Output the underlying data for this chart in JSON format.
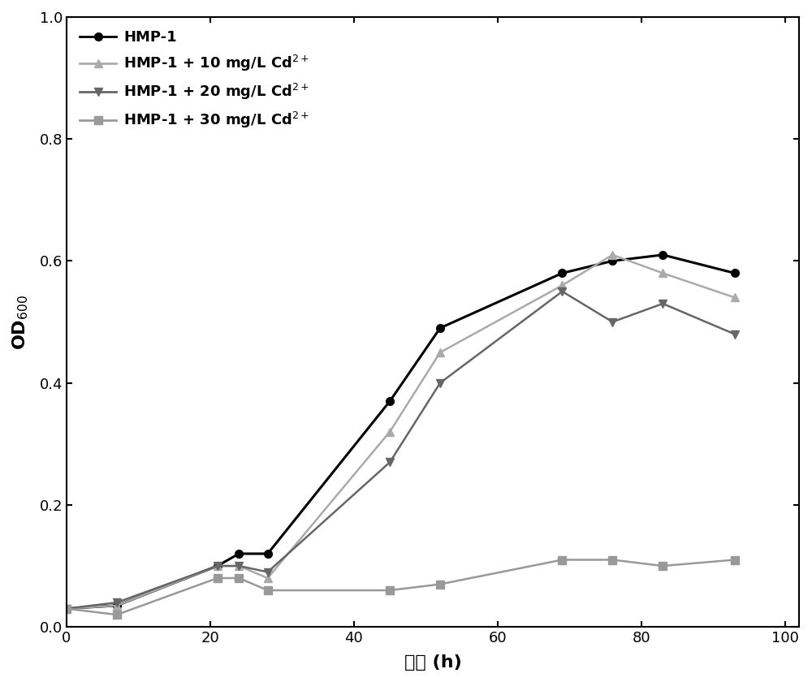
{
  "series": [
    {
      "label": "HMP-1",
      "color": "#000000",
      "linewidth": 2.2,
      "marker": "o",
      "markersize": 7,
      "x": [
        0,
        7,
        21,
        24,
        28,
        45,
        52,
        69,
        76,
        83,
        93
      ],
      "y": [
        0.03,
        0.035,
        0.1,
        0.12,
        0.12,
        0.37,
        0.49,
        0.58,
        0.6,
        0.61,
        0.58
      ]
    },
    {
      "label": "HMP-1 + 10 mg/L Cd$^{2+}$",
      "color": "#aaaaaa",
      "linewidth": 1.8,
      "marker": "^",
      "markersize": 7,
      "x": [
        0,
        7,
        21,
        24,
        28,
        45,
        52,
        69,
        76,
        83,
        93
      ],
      "y": [
        0.03,
        0.035,
        0.1,
        0.1,
        0.08,
        0.32,
        0.45,
        0.56,
        0.61,
        0.58,
        0.54
      ]
    },
    {
      "label": "HMP-1 + 20 mg/L Cd$^{2+}$",
      "color": "#666666",
      "linewidth": 1.8,
      "marker": "v",
      "markersize": 7,
      "x": [
        0,
        7,
        21,
        24,
        28,
        45,
        52,
        69,
        76,
        83,
        93
      ],
      "y": [
        0.03,
        0.04,
        0.1,
        0.1,
        0.09,
        0.27,
        0.4,
        0.55,
        0.5,
        0.53,
        0.48
      ]
    },
    {
      "label": "HMP-1 + 30 mg/L Cd$^{2+}$",
      "color": "#999999",
      "linewidth": 1.8,
      "marker": "s",
      "markersize": 7,
      "x": [
        0,
        7,
        21,
        24,
        28,
        45,
        52,
        69,
        76,
        83,
        93
      ],
      "y": [
        0.03,
        0.02,
        0.08,
        0.08,
        0.06,
        0.06,
        0.07,
        0.11,
        0.11,
        0.1,
        0.11
      ]
    }
  ],
  "xlabel": "时间 (h)",
  "ylabel": "OD$_{600}$",
  "xlim": [
    0,
    102
  ],
  "ylim": [
    0.0,
    1.0
  ],
  "xticks": [
    0,
    20,
    40,
    60,
    80,
    100
  ],
  "yticks": [
    0.0,
    0.2,
    0.4,
    0.6,
    0.8,
    1.0
  ],
  "figsize": [
    10.0,
    8.4
  ],
  "dpi": 100,
  "background_color": "#ffffff",
  "legend_fontsize": 13,
  "axis_label_fontsize": 16,
  "tick_fontsize": 13
}
